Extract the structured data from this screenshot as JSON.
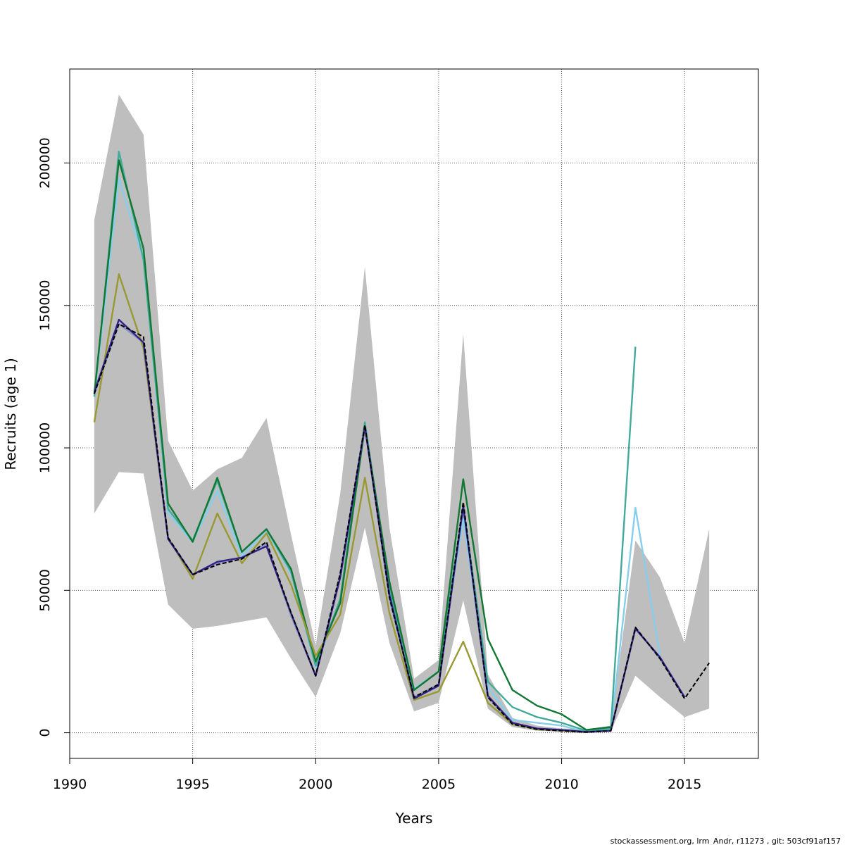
{
  "chart_data": {
    "type": "line",
    "title": "",
    "xlabel": "Years",
    "ylabel": "Recruits (age 1)",
    "xlim": [
      1990,
      2018
    ],
    "ylim": [
      -9000,
      233000
    ],
    "xticks": [
      1990,
      1995,
      2000,
      2005,
      2010,
      2015
    ],
    "yticks": [
      0,
      50000,
      100000,
      150000,
      200000
    ],
    "grid": true,
    "legend": "none",
    "confidence_band": {
      "x": [
        1991,
        1992,
        1993,
        1994,
        1995,
        1996,
        1997,
        1998,
        1999,
        2000,
        2001,
        2002,
        2003,
        2004,
        2005,
        2006,
        2007,
        2008,
        2009,
        2010,
        2011,
        2012,
        2013,
        2014,
        2015,
        2016
      ],
      "lower": [
        77000,
        91500,
        91000,
        45000,
        36500,
        37500,
        39000,
        40500,
        26000,
        12500,
        35000,
        72000,
        31500,
        7500,
        10500,
        46500,
        8500,
        2000,
        700,
        400,
        150,
        400,
        20000,
        12500,
        5500,
        8500
      ],
      "upper": [
        180000,
        224000,
        210000,
        102500,
        85000,
        92500,
        96500,
        110500,
        69500,
        30500,
        84000,
        163500,
        72000,
        19000,
        25500,
        140000,
        20500,
        5200,
        2500,
        1500,
        1200,
        2500,
        67500,
        54500,
        31500,
        71500
      ],
      "color": "#bebebe"
    },
    "series": [
      {
        "color": "#8c96c6",
        "x": [
          1991,
          1992,
          1993,
          1994,
          1995,
          1996,
          1997,
          1998,
          1999,
          2000,
          2001,
          2002,
          2003,
          2004,
          2005,
          2006,
          2007,
          2008,
          2009,
          2010,
          2011,
          2012,
          2013,
          2014,
          2015
        ],
        "values": [
          119000,
          143500,
          137000,
          68500,
          55500,
          59500,
          61500,
          66500,
          41000,
          20000,
          56000,
          108000,
          47000,
          12500,
          17000,
          78000,
          12500,
          3000,
          1200,
          600,
          200,
          700,
          37000,
          26000,
          12500
        ]
      },
      {
        "color": "#87ceeb",
        "x": [
          1991,
          1992,
          1993,
          1994,
          1995,
          1996,
          1997,
          1998,
          1999,
          2000,
          2001,
          2002,
          2003,
          2004,
          2005,
          2006,
          2007,
          2008,
          2009,
          2010,
          2011,
          2012,
          2013,
          2014
        ],
        "values": [
          118000,
          194500,
          166000,
          77000,
          67000,
          85000,
          62000,
          71000,
          56000,
          23000,
          46500,
          108500,
          50000,
          15500,
          21500,
          75000,
          16000,
          4500,
          3500,
          2500,
          200,
          900,
          79000,
          27000
        ]
      },
      {
        "color": "#44aa99",
        "x": [
          1991,
          1992,
          1993,
          1994,
          1995,
          1996,
          1997,
          1998,
          1999,
          2000,
          2001,
          2002,
          2003
        ],
        "values": [
          118000,
          204000,
          166000,
          78500,
          67500,
          88500,
          63500,
          71500,
          56500,
          23500,
          47000,
          109000,
          51000
        ]
      },
      {
        "color": "#44aa99",
        "x": [
          2003,
          2004,
          2005,
          2006,
          2007,
          2008,
          2009,
          2010,
          2011,
          2012,
          2013
        ],
        "values": [
          51000,
          15000,
          21500,
          79500,
          18000,
          9000,
          5500,
          3500,
          700,
          1500,
          135500
        ]
      },
      {
        "color": "#117733",
        "x": [
          1991,
          1992,
          1993,
          1994,
          1995,
          1996,
          1997,
          1998,
          1999,
          2000,
          2001,
          2002,
          2003,
          2004,
          2005,
          2006,
          2007,
          2008,
          2009,
          2010,
          2011,
          2012
        ],
        "values": [
          119000,
          201000,
          170000,
          80500,
          67000,
          89500,
          63500,
          71500,
          57500,
          25000,
          45500,
          107500,
          53000,
          15000,
          21500,
          89000,
          33000,
          15000,
          9500,
          6500,
          1000,
          2000
        ]
      },
      {
        "color": "#999933",
        "x": [
          1991,
          1992,
          1993,
          1994,
          1995,
          1996,
          1997,
          1998,
          1999,
          2000,
          2001,
          2002,
          2003,
          2004,
          2005,
          2006,
          2007,
          2008,
          2009,
          2010,
          2011
        ],
        "values": [
          109000,
          161000,
          135000,
          68500,
          54000,
          77000,
          59500,
          70000,
          52000,
          27000,
          41500,
          89500,
          42000,
          11500,
          14500,
          32000,
          10500,
          3000,
          1200,
          700,
          200
        ]
      },
      {
        "color": "#332288",
        "x": [
          1991,
          1992,
          1993,
          1994,
          1995,
          1996,
          1997,
          1998,
          1999,
          2000,
          2001,
          2002,
          2003,
          2004,
          2005,
          2006,
          2007,
          2008,
          2009,
          2010,
          2011,
          2012,
          2013,
          2014,
          2015
        ],
        "values": [
          119500,
          145000,
          137000,
          68000,
          55500,
          60000,
          61500,
          65500,
          42000,
          20000,
          54500,
          107500,
          48500,
          12000,
          16500,
          79500,
          13000,
          3500,
          1500,
          1000,
          300,
          700,
          36500,
          26500,
          12500
        ]
      },
      {
        "color": "#000000",
        "dashed": true,
        "x": [
          1991,
          1992,
          1993,
          1994,
          1995,
          1996,
          1997,
          1998,
          1999,
          2000,
          2001,
          2002,
          2003,
          2004,
          2005,
          2006,
          2007,
          2008,
          2009,
          2010,
          2011,
          2012,
          2013,
          2014,
          2015,
          2016
        ],
        "values": [
          119000,
          143500,
          139000,
          68500,
          55500,
          59000,
          61000,
          67000,
          42000,
          20000,
          56000,
          108000,
          47500,
          12500,
          17000,
          81000,
          12500,
          3000,
          1200,
          700,
          200,
          700,
          37000,
          26000,
          12000,
          24500
        ]
      }
    ]
  },
  "footer": "stockassessment.org, lrm_Andr, r11273 , git: 503cf91af157"
}
